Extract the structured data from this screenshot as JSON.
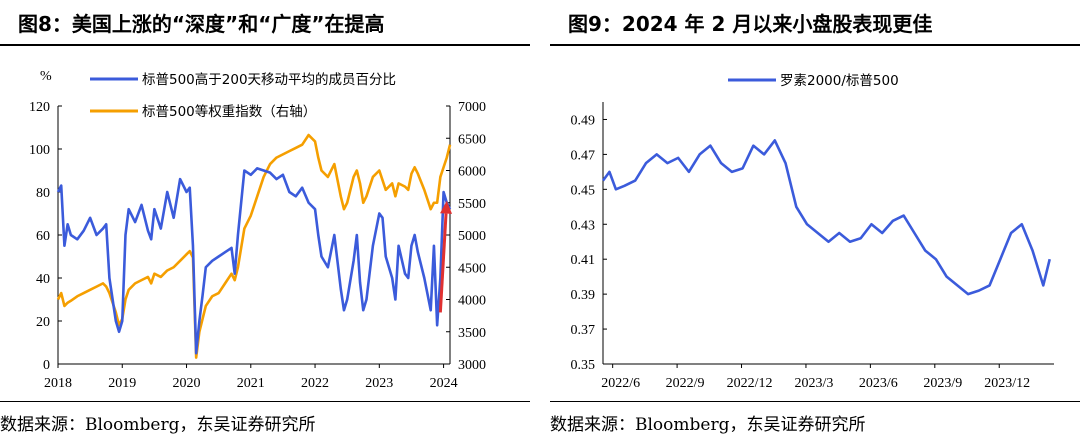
{
  "left": {
    "figure_title": "图8：美国上涨的“深度”和“广度”在提高",
    "source": "数据来源：Bloomberg，东吴证券研究所",
    "chart_data": {
      "type": "line",
      "y_unit_label": "%",
      "ylim": [
        0,
        120
      ],
      "yticks": [
        0,
        20,
        40,
        60,
        80,
        100,
        120
      ],
      "y2lim": [
        3000,
        7000
      ],
      "y2ticks": [
        3000,
        3500,
        4000,
        4500,
        5000,
        5500,
        6000,
        6500,
        7000
      ],
      "xlim": [
        2018,
        2024.1
      ],
      "xticks": [
        "2018",
        "2019",
        "2020",
        "2021",
        "2022",
        "2023",
        "2024"
      ],
      "grid": false,
      "legend_position": "top",
      "series": [
        {
          "name": "标普500高于200天移动平均的成员百分比",
          "axis": "left",
          "color": "#3b5bdb",
          "x": [
            2018.0,
            2018.05,
            2018.1,
            2018.15,
            2018.2,
            2018.3,
            2018.4,
            2018.5,
            2018.6,
            2018.7,
            2018.75,
            2018.8,
            2018.9,
            2018.95,
            2019.0,
            2019.05,
            2019.1,
            2019.2,
            2019.3,
            2019.4,
            2019.45,
            2019.5,
            2019.6,
            2019.7,
            2019.8,
            2019.9,
            2020.0,
            2020.05,
            2020.1,
            2020.15,
            2020.2,
            2020.25,
            2020.3,
            2020.4,
            2020.5,
            2020.6,
            2020.7,
            2020.75,
            2020.8,
            2020.9,
            2021.0,
            2021.1,
            2021.2,
            2021.3,
            2021.4,
            2021.5,
            2021.6,
            2021.7,
            2021.8,
            2021.9,
            2022.0,
            2022.05,
            2022.1,
            2022.2,
            2022.3,
            2022.4,
            2022.45,
            2022.5,
            2022.6,
            2022.65,
            2022.7,
            2022.75,
            2022.8,
            2022.9,
            2023.0,
            2023.05,
            2023.1,
            2023.2,
            2023.25,
            2023.3,
            2023.4,
            2023.45,
            2023.5,
            2023.55,
            2023.6,
            2023.7,
            2023.8,
            2023.85,
            2023.9,
            2023.95,
            2024.0,
            2024.05,
            2024.1
          ],
          "values": [
            80,
            83,
            55,
            65,
            60,
            58,
            62,
            68,
            60,
            63,
            65,
            40,
            20,
            15,
            20,
            60,
            72,
            66,
            74,
            62,
            58,
            72,
            63,
            80,
            68,
            86,
            80,
            82,
            55,
            5,
            20,
            32,
            45,
            48,
            50,
            52,
            54,
            42,
            60,
            90,
            88,
            91,
            90,
            89,
            86,
            88,
            80,
            78,
            82,
            75,
            72,
            60,
            50,
            45,
            60,
            35,
            25,
            30,
            48,
            60,
            38,
            25,
            30,
            55,
            70,
            68,
            50,
            40,
            30,
            55,
            42,
            40,
            55,
            60,
            52,
            40,
            25,
            55,
            18,
            40,
            80,
            75,
            72
          ]
        },
        {
          "name": "标普500等权重指数（右轴）",
          "axis": "right",
          "color": "#f59f00",
          "x": [
            2018.0,
            2018.05,
            2018.1,
            2018.15,
            2018.2,
            2018.3,
            2018.4,
            2018.5,
            2018.6,
            2018.7,
            2018.75,
            2018.8,
            2018.9,
            2018.95,
            2019.0,
            2019.05,
            2019.1,
            2019.2,
            2019.3,
            2019.4,
            2019.45,
            2019.5,
            2019.6,
            2019.7,
            2019.8,
            2019.9,
            2020.0,
            2020.05,
            2020.1,
            2020.15,
            2020.2,
            2020.25,
            2020.3,
            2020.4,
            2020.5,
            2020.6,
            2020.7,
            2020.75,
            2020.8,
            2020.9,
            2021.0,
            2021.1,
            2021.2,
            2021.3,
            2021.4,
            2021.5,
            2021.6,
            2021.7,
            2021.8,
            2021.9,
            2022.0,
            2022.05,
            2022.1,
            2022.2,
            2022.3,
            2022.4,
            2022.45,
            2022.5,
            2022.6,
            2022.65,
            2022.7,
            2022.75,
            2022.8,
            2022.9,
            2023.0,
            2023.05,
            2023.1,
            2023.2,
            2023.25,
            2023.3,
            2023.4,
            2023.45,
            2023.5,
            2023.55,
            2023.6,
            2023.7,
            2023.8,
            2023.85,
            2023.9,
            2023.95,
            2024.0,
            2024.05,
            2024.1
          ],
          "values": [
            4000,
            4100,
            3900,
            3950,
            3980,
            4050,
            4100,
            4150,
            4200,
            4250,
            4200,
            4100,
            3800,
            3600,
            3700,
            4000,
            4150,
            4250,
            4300,
            4350,
            4250,
            4400,
            4350,
            4450,
            4500,
            4600,
            4700,
            4750,
            4650,
            3100,
            3500,
            3700,
            3900,
            4050,
            4100,
            4250,
            4400,
            4300,
            4500,
            5100,
            5300,
            5600,
            5900,
            6100,
            6200,
            6250,
            6300,
            6350,
            6400,
            6550,
            6450,
            6200,
            6000,
            5900,
            6100,
            5600,
            5400,
            5500,
            5900,
            6000,
            5800,
            5500,
            5600,
            5900,
            6000,
            5850,
            5700,
            5800,
            5600,
            5800,
            5750,
            5700,
            5950,
            6050,
            5950,
            5700,
            5400,
            5500,
            5500,
            5900,
            6050,
            6200,
            6400
          ]
        }
      ],
      "annotation": {
        "type": "arrow",
        "color": "#e03131",
        "from": [
          2023.95,
          24
        ],
        "to": [
          2024.05,
          76
        ]
      }
    }
  },
  "right": {
    "figure_title": "图9：2024 年 2 月以来小盘股表现更佳",
    "source": "数据来源：Bloomberg，东吴证券研究所",
    "chart_data": {
      "type": "line",
      "ylim": [
        0.35,
        0.5
      ],
      "yticks": [
        "0.35",
        "0.37",
        "0.39",
        "0.41",
        "0.43",
        "0.45",
        "0.47",
        "0.49"
      ],
      "xlim": [
        0,
        21
      ],
      "xticks": [
        "2022/6",
        "2022/9",
        "2022/12",
        "2023/3",
        "2023/6",
        "2023/9",
        "2023/12"
      ],
      "grid": false,
      "legend_position": "top",
      "series": [
        {
          "name": "罗素2000/标普500",
          "color": "#3b5bdb",
          "x": [
            0,
            0.3,
            0.6,
            1.0,
            1.5,
            2.0,
            2.5,
            3.0,
            3.5,
            4.0,
            4.5,
            5.0,
            5.5,
            6.0,
            6.5,
            7.0,
            7.5,
            8.0,
            8.5,
            9.0,
            9.5,
            10.0,
            10.5,
            11.0,
            11.5,
            12.0,
            12.5,
            13.0,
            13.5,
            14.0,
            14.5,
            15.0,
            15.5,
            16.0,
            16.5,
            17.0,
            17.5,
            18.0,
            18.5,
            19.0,
            19.5,
            20.0,
            20.5,
            20.8
          ],
          "values": [
            0.455,
            0.46,
            0.45,
            0.452,
            0.455,
            0.465,
            0.47,
            0.465,
            0.468,
            0.46,
            0.47,
            0.475,
            0.465,
            0.46,
            0.462,
            0.475,
            0.47,
            0.478,
            0.465,
            0.44,
            0.43,
            0.425,
            0.42,
            0.425,
            0.42,
            0.422,
            0.43,
            0.425,
            0.432,
            0.435,
            0.425,
            0.415,
            0.41,
            0.4,
            0.395,
            0.39,
            0.392,
            0.395,
            0.41,
            0.425,
            0.43,
            0.415,
            0.395,
            0.41
          ]
        }
      ]
    }
  }
}
